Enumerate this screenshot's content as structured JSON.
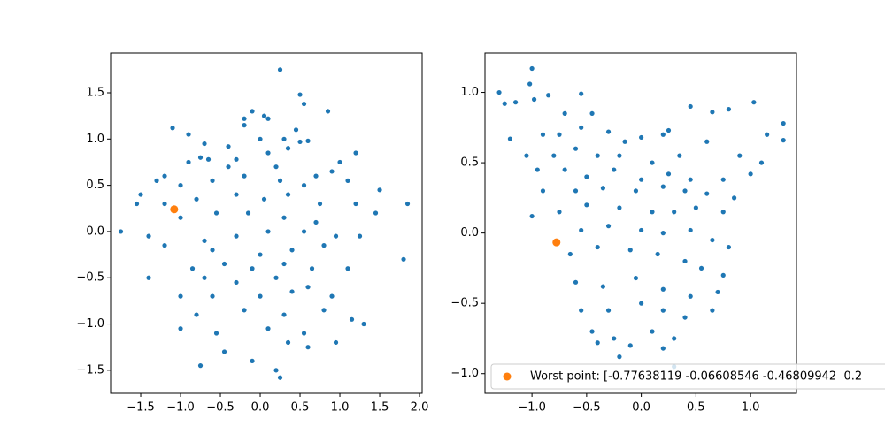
{
  "chart_data": [
    {
      "type": "scatter",
      "xlim": [
        -1.878,
        2.033
      ],
      "ylim": [
        -1.75,
        1.93
      ],
      "xticks": [
        {
          "value": -1.5,
          "label": "−1.5"
        },
        {
          "value": -1.0,
          "label": "−1.0"
        },
        {
          "value": -0.5,
          "label": "−0.5"
        },
        {
          "value": 0.0,
          "label": "0.0"
        },
        {
          "value": 0.5,
          "label": "0.5"
        },
        {
          "value": 1.0,
          "label": "1.0"
        },
        {
          "value": 1.5,
          "label": "1.5"
        },
        {
          "value": 2.0,
          "label": "2.0"
        }
      ],
      "yticks": [
        {
          "value": -1.5,
          "label": "−1.5"
        },
        {
          "value": -1.0,
          "label": "−1.0"
        },
        {
          "value": -0.5,
          "label": "−0.5"
        },
        {
          "value": 0.0,
          "label": "0.0"
        },
        {
          "value": 0.5,
          "label": "0.5"
        },
        {
          "value": 1.0,
          "label": "1.0"
        },
        {
          "value": 1.5,
          "label": "1.5"
        }
      ],
      "series": [
        {
          "color": "#1f77b4",
          "size": 2.6,
          "x": [
            0.25,
            0.5,
            0.55,
            -0.2,
            0.1,
            0.45,
            -0.1,
            0.05,
            0.85,
            -1.1,
            -0.9,
            -0.2,
            0.3,
            0.5,
            0.6,
            -0.7,
            -0.4,
            0.0,
            -0.75,
            -0.65,
            -0.3,
            0.1,
            0.35,
            1.0,
            1.2,
            -1.3,
            -1.2,
            -0.9,
            -0.4,
            0.2,
            0.7,
            0.9,
            1.1,
            -1.5,
            -1.0,
            -0.6,
            -0.2,
            0.25,
            0.55,
            1.5,
            -1.55,
            -1.2,
            -0.8,
            -0.3,
            0.05,
            0.35,
            0.75,
            1.2,
            1.85,
            -1.0,
            -0.55,
            -0.15,
            0.3,
            0.7,
            1.45,
            -1.75,
            -1.4,
            -0.7,
            -0.3,
            0.1,
            0.55,
            0.95,
            1.25,
            -1.2,
            -0.6,
            0.0,
            0.4,
            0.8,
            1.8,
            -0.85,
            -0.45,
            -0.1,
            0.3,
            0.65,
            1.1,
            -1.4,
            -0.7,
            -0.3,
            0.2,
            0.6,
            -1.0,
            -0.6,
            0.0,
            0.4,
            0.9,
            -0.8,
            -0.2,
            0.3,
            0.8,
            1.3,
            -1.0,
            -0.55,
            0.1,
            0.55,
            1.15,
            -0.75,
            -0.45,
            -0.1,
            0.2,
            0.25,
            0.6,
            0.95,
            0.35
          ],
          "values": [
            1.75,
            1.48,
            1.38,
            1.22,
            1.22,
            1.1,
            1.3,
            1.25,
            1.3,
            1.12,
            1.05,
            1.15,
            1.0,
            0.97,
            0.98,
            0.95,
            0.92,
            1.0,
            0.8,
            0.78,
            0.78,
            0.85,
            0.9,
            0.75,
            0.85,
            0.55,
            0.6,
            0.75,
            0.7,
            0.7,
            0.6,
            0.65,
            0.55,
            0.4,
            0.5,
            0.55,
            0.6,
            0.55,
            0.5,
            0.45,
            0.3,
            0.3,
            0.35,
            0.4,
            0.35,
            0.4,
            0.3,
            0.3,
            0.3,
            0.15,
            0.2,
            0.2,
            0.15,
            0.1,
            0.2,
            0.0,
            -0.05,
            -0.1,
            -0.05,
            0.0,
            0.0,
            -0.05,
            -0.05,
            -0.15,
            -0.2,
            -0.25,
            -0.2,
            -0.15,
            -0.3,
            -0.4,
            -0.35,
            -0.4,
            -0.35,
            -0.4,
            -0.4,
            -0.5,
            -0.5,
            -0.55,
            -0.5,
            -0.6,
            -0.7,
            -0.7,
            -0.7,
            -0.65,
            -0.7,
            -0.9,
            -0.85,
            -0.9,
            -0.85,
            -1.0,
            -1.05,
            -1.1,
            -1.05,
            -1.1,
            -0.95,
            -1.45,
            -1.3,
            -1.4,
            -1.5,
            -1.58,
            -1.25,
            -1.2,
            -1.2
          ]
        },
        {
          "color": "#ff7f0e",
          "size": 4.5,
          "x": [
            -1.08
          ],
          "values": [
            0.24
          ]
        }
      ]
    },
    {
      "type": "scatter",
      "xlim": [
        -1.43,
        1.42
      ],
      "ylim": [
        -1.14,
        1.28
      ],
      "xticks": [
        {
          "value": -1.0,
          "label": "−1.0"
        },
        {
          "value": -0.5,
          "label": "−0.5"
        },
        {
          "value": 0.0,
          "label": "0.0"
        },
        {
          "value": 0.5,
          "label": "0.5"
        },
        {
          "value": 1.0,
          "label": "1.0"
        }
      ],
      "yticks": [
        {
          "value": -1.0,
          "label": "−1.0"
        },
        {
          "value": -0.5,
          "label": "−0.5"
        },
        {
          "value": 0.0,
          "label": "0.0"
        },
        {
          "value": 0.5,
          "label": "0.5"
        },
        {
          "value": 1.0,
          "label": "1.0"
        }
      ],
      "legend": "lower left",
      "series": [
        {
          "color": "#1f77b4",
          "size": 2.6,
          "x": [
            -1.3,
            -1.25,
            -1.15,
            -1.0,
            -1.02,
            -0.98,
            -0.85,
            -0.55,
            -0.45,
            -0.7,
            -1.2,
            -0.9,
            -0.75,
            -0.55,
            -0.3,
            -0.15,
            0.0,
            0.2,
            0.25,
            0.45,
            0.65,
            0.8,
            1.03,
            1.3,
            1.3,
            1.15,
            -1.05,
            -0.8,
            -0.6,
            -0.4,
            -0.2,
            0.1,
            0.35,
            0.6,
            0.9,
            1.1,
            -0.95,
            -0.7,
            -0.5,
            -0.25,
            0.0,
            0.25,
            0.45,
            0.75,
            1.0,
            -0.9,
            -0.6,
            -0.35,
            -0.05,
            0.2,
            0.4,
            0.6,
            0.85,
            -1.0,
            -0.75,
            -0.5,
            -0.2,
            0.1,
            0.3,
            0.5,
            0.75,
            -0.55,
            -0.3,
            0.0,
            0.2,
            0.45,
            0.65,
            0.8,
            -0.65,
            -0.4,
            -0.1,
            0.15,
            0.4,
            0.55,
            0.75,
            -0.6,
            -0.35,
            -0.05,
            0.2,
            0.45,
            0.7,
            -0.55,
            -0.3,
            0.0,
            0.2,
            0.4,
            0.65,
            -0.45,
            -0.25,
            0.1,
            0.3,
            -0.1,
            0.2,
            0.3,
            -0.2,
            -0.4
          ],
          "values": [
            1.0,
            0.92,
            0.93,
            1.17,
            1.06,
            0.95,
            0.98,
            0.99,
            0.85,
            0.85,
            0.67,
            0.7,
            0.7,
            0.75,
            0.72,
            0.65,
            0.68,
            0.7,
            0.73,
            0.9,
            0.86,
            0.88,
            0.93,
            0.78,
            0.66,
            0.7,
            0.55,
            0.55,
            0.6,
            0.55,
            0.55,
            0.5,
            0.55,
            0.65,
            0.55,
            0.5,
            0.45,
            0.45,
            0.4,
            0.45,
            0.38,
            0.42,
            0.38,
            0.38,
            0.42,
            0.3,
            0.3,
            0.32,
            0.3,
            0.33,
            0.3,
            0.28,
            0.25,
            0.12,
            0.15,
            0.2,
            0.18,
            0.15,
            0.15,
            0.18,
            0.15,
            0.02,
            0.05,
            0.02,
            0.0,
            0.02,
            -0.05,
            -0.1,
            -0.15,
            -0.1,
            -0.12,
            -0.15,
            -0.2,
            -0.25,
            -0.3,
            -0.35,
            -0.38,
            -0.32,
            -0.4,
            -0.45,
            -0.42,
            -0.55,
            -0.55,
            -0.5,
            -0.55,
            -0.6,
            -0.55,
            -0.7,
            -0.75,
            -0.7,
            -0.75,
            -0.8,
            -0.82,
            -0.95,
            -0.88,
            -0.78
          ]
        },
        {
          "name": "Worst point: [-0.77638119 -0.06608546 -0.46809942  0.2",
          "color": "#ff7f0e",
          "size": 4.5,
          "x": [
            -0.776
          ],
          "values": [
            -0.066
          ]
        }
      ]
    }
  ]
}
